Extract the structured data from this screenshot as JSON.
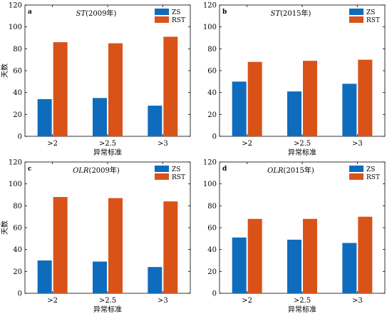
{
  "colors": {
    "zs": "#0f6cbd",
    "rst": "#d95319",
    "axis": "#000000",
    "background": "#ffffff"
  },
  "chart_data": [
    {
      "type": "bar",
      "panel_letter": "a",
      "title": "ST(2009年)",
      "title_italic": "ST",
      "title_rest": "(2009年)",
      "xlabel": "异常标准",
      "ylabel": "天数",
      "categories": [
        ">2",
        ">2.5",
        ">3"
      ],
      "ylim": [
        0,
        120
      ],
      "yticks": [
        0,
        20,
        40,
        60,
        80,
        100,
        120
      ],
      "legend_position": "top-right",
      "grid": false,
      "series": [
        {
          "name": "ZS",
          "values": [
            34,
            35,
            28
          ]
        },
        {
          "name": "RST",
          "values": [
            86,
            85,
            91
          ]
        }
      ]
    },
    {
      "type": "bar",
      "panel_letter": "b",
      "title": "ST(2015年)",
      "title_italic": "ST",
      "title_rest": "(2015年)",
      "xlabel": "异常标准",
      "ylabel": "",
      "categories": [
        ">2",
        ">2.5",
        ">3"
      ],
      "ylim": [
        0,
        120
      ],
      "yticks": [
        0,
        20,
        40,
        60,
        80,
        100,
        120
      ],
      "legend_position": "top-right",
      "grid": false,
      "series": [
        {
          "name": "ZS",
          "values": [
            50,
            41,
            48
          ]
        },
        {
          "name": "RST",
          "values": [
            68,
            69,
            70
          ]
        }
      ]
    },
    {
      "type": "bar",
      "panel_letter": "c",
      "title": "OLR(2009年)",
      "title_italic": "OLR",
      "title_rest": "(2009年)",
      "xlabel": "异常标准",
      "ylabel": "天数",
      "categories": [
        ">2",
        ">2.5",
        ">3"
      ],
      "ylim": [
        0,
        120
      ],
      "yticks": [
        0,
        20,
        40,
        60,
        80,
        100,
        120
      ],
      "legend_position": "top-right",
      "grid": false,
      "series": [
        {
          "name": "ZS",
          "values": [
            30,
            29,
            24
          ]
        },
        {
          "name": "RST",
          "values": [
            88,
            87,
            84
          ]
        }
      ]
    },
    {
      "type": "bar",
      "panel_letter": "d",
      "title": "OLR(2015年)",
      "title_italic": "OLR",
      "title_rest": "(2015年)",
      "xlabel": "异常标准",
      "ylabel": "",
      "categories": [
        ">2",
        ">2.5",
        ">3"
      ],
      "ylim": [
        0,
        120
      ],
      "yticks": [
        0,
        20,
        40,
        60,
        80,
        100,
        120
      ],
      "legend_position": "top-right",
      "grid": false,
      "series": [
        {
          "name": "ZS",
          "values": [
            51,
            49,
            46
          ]
        },
        {
          "name": "RST",
          "values": [
            68,
            68,
            70
          ]
        }
      ]
    }
  ]
}
